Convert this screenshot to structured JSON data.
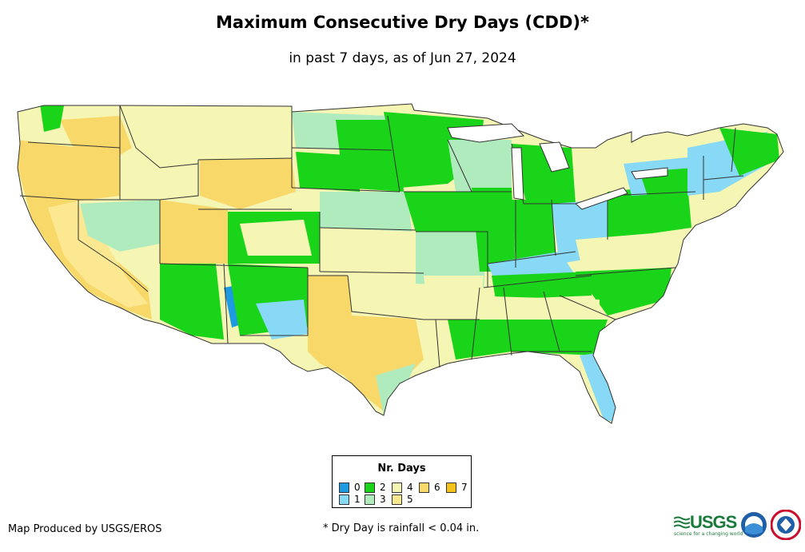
{
  "title": "Maximum Consecutive Dry Days (CDD)*",
  "subtitle": "in past 7 days, as of Jun 27, 2024",
  "legend": {
    "title": "Nr. Days",
    "items": [
      {
        "label": "0",
        "color": "#1e9be0"
      },
      {
        "label": "2",
        "color": "#19d419"
      },
      {
        "label": "4",
        "color": "#f5f5b4"
      },
      {
        "label": "6",
        "color": "#f9d86a"
      },
      {
        "label": "7",
        "color": "#f6c21a"
      },
      {
        "label": "1",
        "color": "#87d9f5"
      },
      {
        "label": "3",
        "color": "#b0ebbe"
      },
      {
        "label": "5",
        "color": "#fbe890"
      }
    ]
  },
  "credit": "Map Produced by USGS/EROS",
  "footnote": "* Dry Day is rainfall < 0.04 in.",
  "logos": {
    "usgs_text": "USGS",
    "usgs_tagline": "science for a changing world"
  },
  "colors": {
    "state_border": "#333333"
  }
}
